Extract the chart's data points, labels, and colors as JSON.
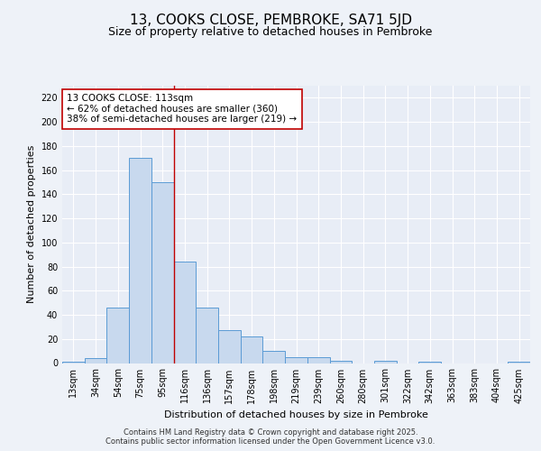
{
  "title": "13, COOKS CLOSE, PEMBROKE, SA71 5JD",
  "subtitle": "Size of property relative to detached houses in Pembroke",
  "xlabel": "Distribution of detached houses by size in Pembroke",
  "ylabel": "Number of detached properties",
  "categories": [
    "13sqm",
    "34sqm",
    "54sqm",
    "75sqm",
    "95sqm",
    "116sqm",
    "136sqm",
    "157sqm",
    "178sqm",
    "198sqm",
    "219sqm",
    "239sqm",
    "260sqm",
    "280sqm",
    "301sqm",
    "322sqm",
    "342sqm",
    "363sqm",
    "383sqm",
    "404sqm",
    "425sqm"
  ],
  "values": [
    1,
    4,
    46,
    170,
    150,
    84,
    46,
    27,
    22,
    10,
    5,
    5,
    2,
    0,
    2,
    0,
    1,
    0,
    0,
    0,
    1
  ],
  "bar_color": "#c8d9ee",
  "bar_edge_color": "#5b9bd5",
  "vline_x_index": 5,
  "vline_color": "#c00000",
  "annotation_line1": "13 COOKS CLOSE: 113sqm",
  "annotation_line2": "← 62% of detached houses are smaller (360)",
  "annotation_line3": "38% of semi-detached houses are larger (219) →",
  "annotation_box_color": "#ffffff",
  "annotation_box_edge": "#c00000",
  "ylim": [
    0,
    230
  ],
  "yticks": [
    0,
    20,
    40,
    60,
    80,
    100,
    120,
    140,
    160,
    180,
    200,
    220
  ],
  "background_color": "#eef2f8",
  "plot_bg_color": "#e8edf6",
  "footer_line1": "Contains HM Land Registry data © Crown copyright and database right 2025.",
  "footer_line2": "Contains public sector information licensed under the Open Government Licence v3.0.",
  "title_fontsize": 11,
  "subtitle_fontsize": 9,
  "label_fontsize": 8,
  "tick_fontsize": 7,
  "annotation_fontsize": 7.5,
  "footer_fontsize": 6
}
